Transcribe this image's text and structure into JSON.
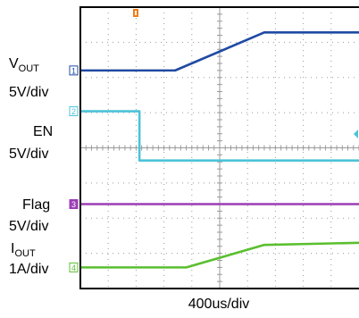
{
  "chart_data": {
    "type": "line",
    "xlabel": "400us/div",
    "x_divisions": 10,
    "y_divisions": 8,
    "grid": true,
    "channel_labels": [
      {
        "name": "V",
        "sub": "OUT",
        "scale": "5V/div"
      },
      {
        "name": "EN",
        "sub": "",
        "scale": "5V/div"
      },
      {
        "name": "Flag",
        "sub": "",
        "scale": "5V/div"
      },
      {
        "name": "I",
        "sub": "OUT",
        "scale": "1A/div"
      }
    ],
    "channel_markers": [
      "1",
      "2",
      "3",
      "4"
    ],
    "series": [
      {
        "name": "VOUT",
        "color": "#1f4aa3",
        "x": [
          0,
          3.4,
          6.6,
          10
        ],
        "y": [
          6.2,
          6.2,
          7.28,
          7.28
        ]
      },
      {
        "name": "EN",
        "color": "#4cc3d8",
        "x": [
          0,
          2.12,
          2.12,
          10
        ],
        "y": [
          5.04,
          5.04,
          3.64,
          3.64
        ]
      },
      {
        "name": "Flag",
        "color": "#9b3fb5",
        "x": [
          0,
          10
        ],
        "y": [
          2.4,
          2.4
        ]
      },
      {
        "name": "IOUT",
        "color": "#5bbf2f",
        "x": [
          0,
          3.8,
          6.6,
          10
        ],
        "y": [
          0.6,
          0.6,
          1.24,
          1.3
        ]
      }
    ],
    "colors": {
      "trigger": "#f07d1a",
      "grid": "#9a9a9a",
      "frame": "#000000"
    }
  }
}
